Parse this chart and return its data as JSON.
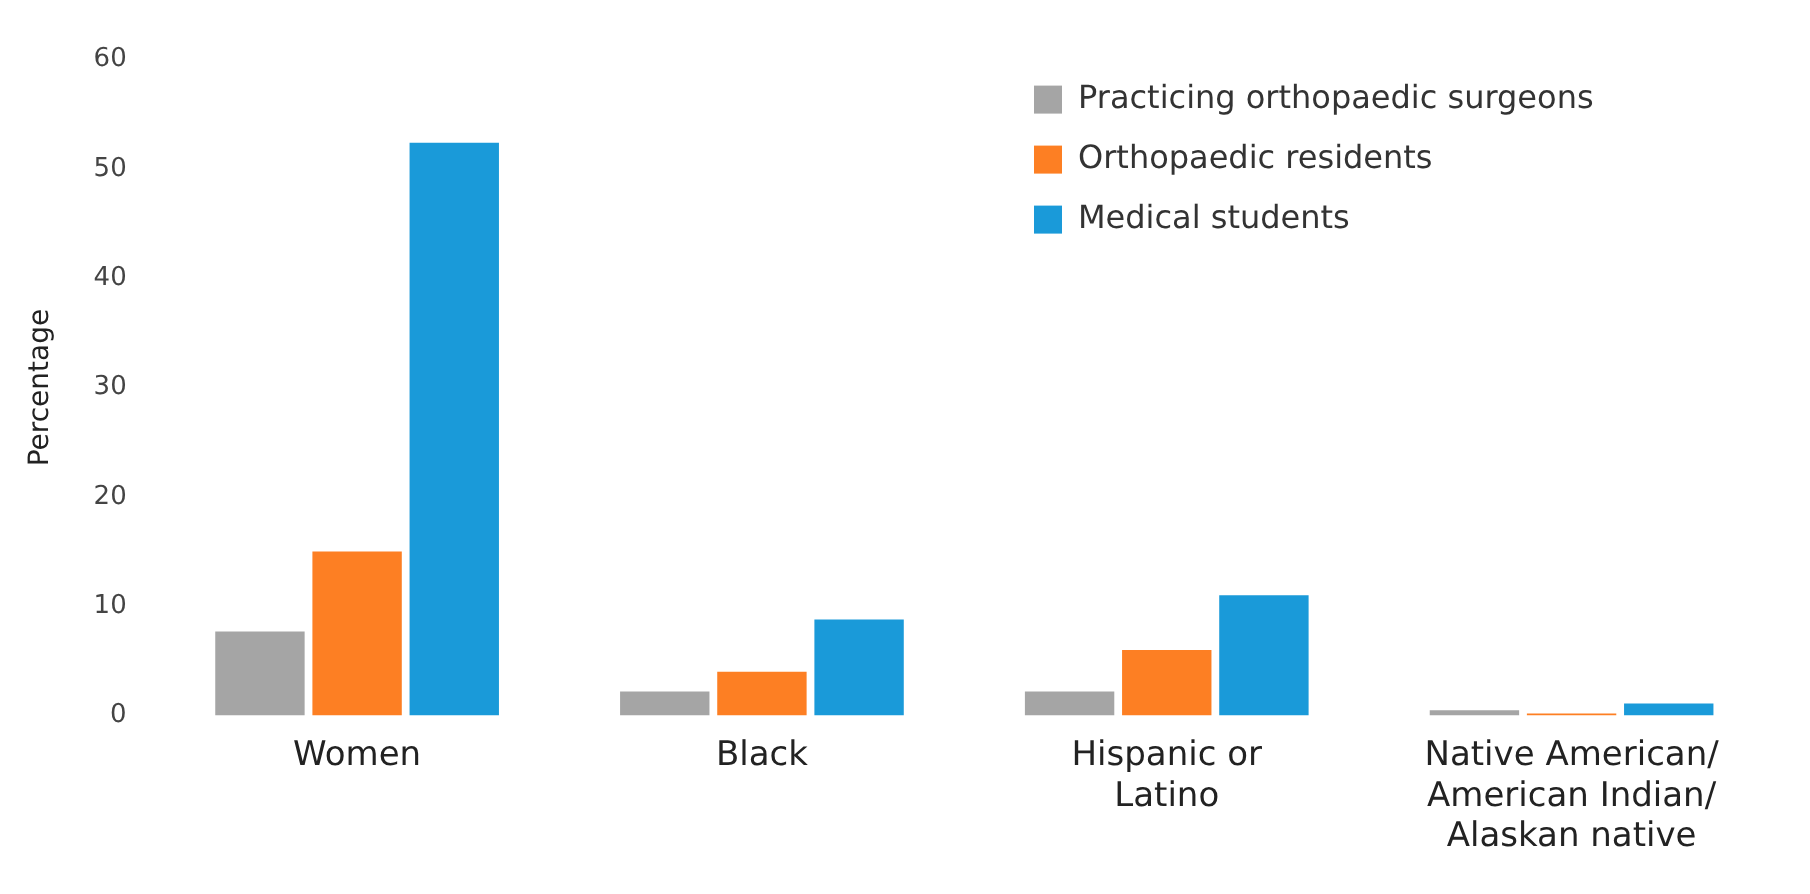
{
  "chart_data": {
    "type": "bar",
    "ylabel": "Percentage",
    "categories": [
      "Women",
      "Black",
      "Hispanic or Latino",
      "Native American/American Indian/Alaskan native"
    ],
    "series": [
      {
        "name": "Practicing orthopaedic surgeons",
        "color": "#a5a5a5",
        "values": [
          7.7,
          2.2,
          2.2,
          0.5
        ]
      },
      {
        "name": "Orthopaedic residents",
        "color": "#fd7f23",
        "values": [
          15,
          4,
          6,
          0.2
        ]
      },
      {
        "name": "Medical students",
        "color": "#1a9ad9",
        "values": [
          52.4,
          8.8,
          11,
          1.1
        ]
      }
    ],
    "ylim": [
      0,
      60
    ],
    "yticks": [
      0,
      10,
      20,
      30,
      40,
      50,
      60
    ],
    "grid": false,
    "legend": "top right"
  }
}
